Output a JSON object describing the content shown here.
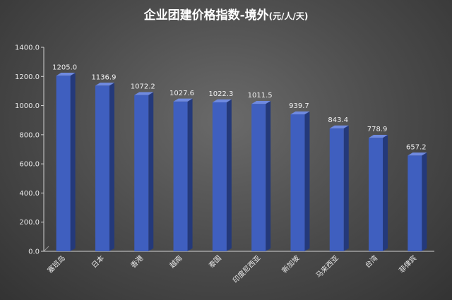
{
  "chart_data": {
    "type": "bar",
    "title": "企业团建价格指数-境外",
    "title_unit": "(元/人/天)",
    "categories": [
      "塞班岛",
      "日本",
      "香港",
      "越南",
      "泰国",
      "印度尼西亚",
      "新加坡",
      "马来西亚",
      "台湾",
      "菲律宾"
    ],
    "values": [
      1205.0,
      1136.9,
      1072.2,
      1027.6,
      1022.3,
      1011.5,
      939.7,
      843.4,
      778.9,
      657.2
    ],
    "value_labels": [
      "1205.0",
      "1136.9",
      "1072.2",
      "1027.6",
      "1022.3",
      "1011.5",
      "939.7",
      "843.4",
      "778.9",
      "657.2"
    ],
    "y_ticks": [
      "0.0",
      "200.0",
      "400.0",
      "600.0",
      "800.0",
      "1000.0",
      "1200.0",
      "1400.0"
    ],
    "y_tick_values": [
      0,
      200,
      400,
      600,
      800,
      1000,
      1200,
      1400
    ],
    "ylim": [
      0,
      1400
    ],
    "xlabel": "",
    "ylabel": "",
    "grid": false,
    "legend": "none",
    "colors": {
      "bar_front": "#3f5fbf",
      "bar_side": "#24397a",
      "bar_top": "#6f8ae0",
      "axis": "#d0d0d0",
      "text": "#e8e8e8"
    }
  }
}
